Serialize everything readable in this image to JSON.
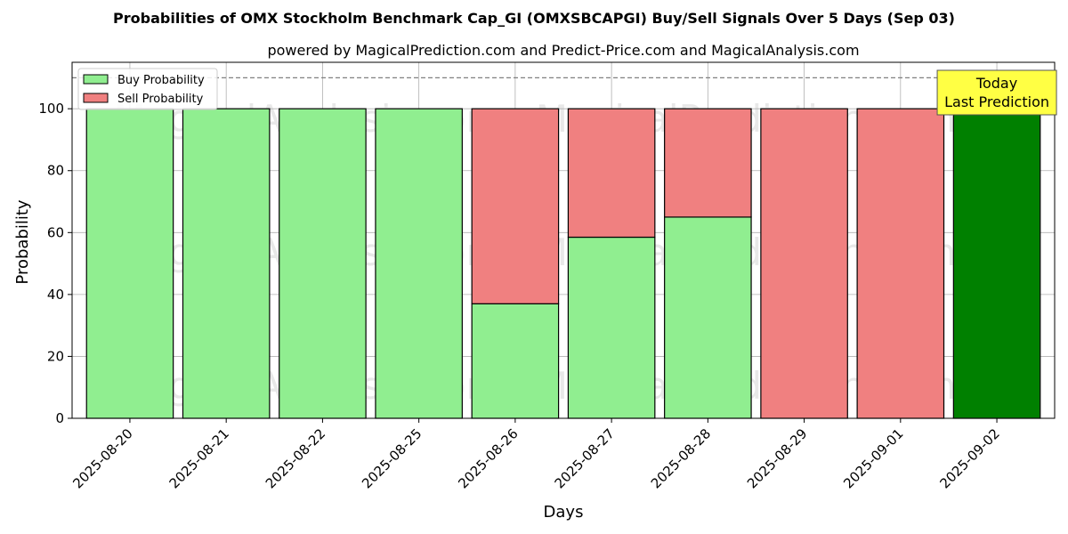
{
  "chart_data": {
    "type": "bar",
    "stacked": true,
    "title": "Probabilities of OMX Stockholm Benchmark Cap_GI (OMXSBCAPGI) Buy/Sell Signals Over 5 Days (Sep 03)",
    "subtitle": "powered by MagicalPrediction.com and Predict-Price.com and MagicalAnalysis.com",
    "xlabel": "Days",
    "ylabel": "Probability",
    "ylim": [
      0,
      115
    ],
    "yticks": [
      0,
      20,
      40,
      60,
      80,
      100
    ],
    "grid": true,
    "legend_position": "top-left",
    "reference_line": 110,
    "categories": [
      "2025-08-20",
      "2025-08-21",
      "2025-08-22",
      "2025-08-25",
      "2025-08-26",
      "2025-08-27",
      "2025-08-28",
      "2025-08-29",
      "2025-09-01",
      "2025-09-02"
    ],
    "series": [
      {
        "name": "Buy Probability",
        "color": "#90ee90",
        "values": [
          100,
          100,
          100,
          100,
          37,
          58.5,
          65,
          0,
          0,
          100
        ]
      },
      {
        "name": "Sell Probability",
        "color": "#f08080",
        "values": [
          0,
          0,
          0,
          0,
          63,
          41.5,
          35,
          100,
          100,
          0
        ]
      }
    ],
    "highlight": {
      "index": 9,
      "color": "#008000"
    },
    "annotation": {
      "lines": [
        "Today",
        "Last Prediction"
      ],
      "background": "#ffff44"
    },
    "watermarks": [
      "MagicalAnalysis.com",
      "MagicalPrediction.com"
    ]
  }
}
